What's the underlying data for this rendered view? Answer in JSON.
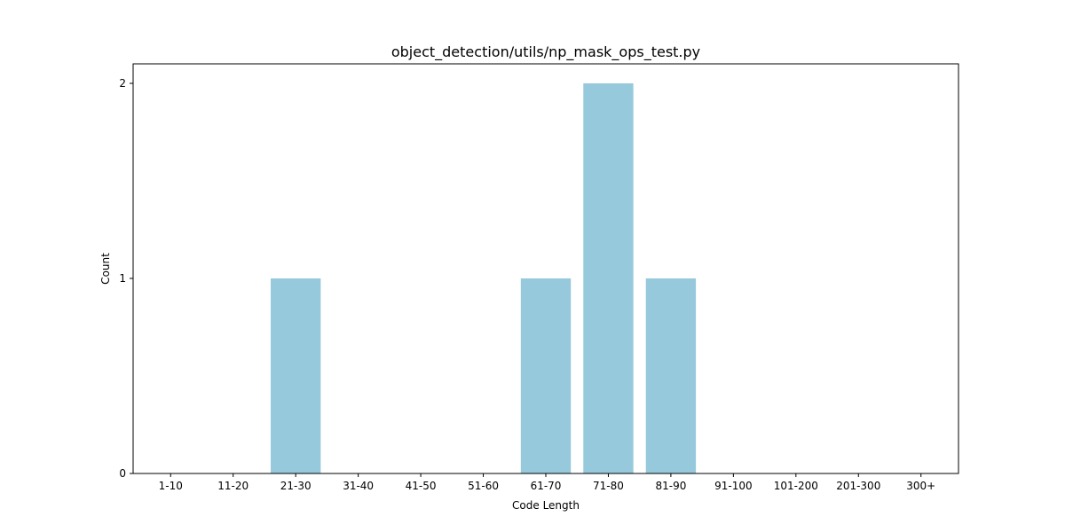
{
  "chart_data": {
    "type": "bar",
    "title": "object_detection/utils/np_mask_ops_test.py",
    "xlabel": "Code Length",
    "ylabel": "Count",
    "categories": [
      "1-10",
      "11-20",
      "21-30",
      "31-40",
      "41-50",
      "51-60",
      "61-70",
      "71-80",
      "81-90",
      "91-100",
      "101-200",
      "201-300",
      "300+"
    ],
    "values": [
      0,
      0,
      1,
      0,
      0,
      0,
      1,
      2,
      1,
      0,
      0,
      0,
      0
    ],
    "ylim": [
      0,
      2.1
    ],
    "yticks": [
      0,
      1,
      2
    ],
    "bar_color": "#96c9dc",
    "grid": false,
    "legend": false
  }
}
